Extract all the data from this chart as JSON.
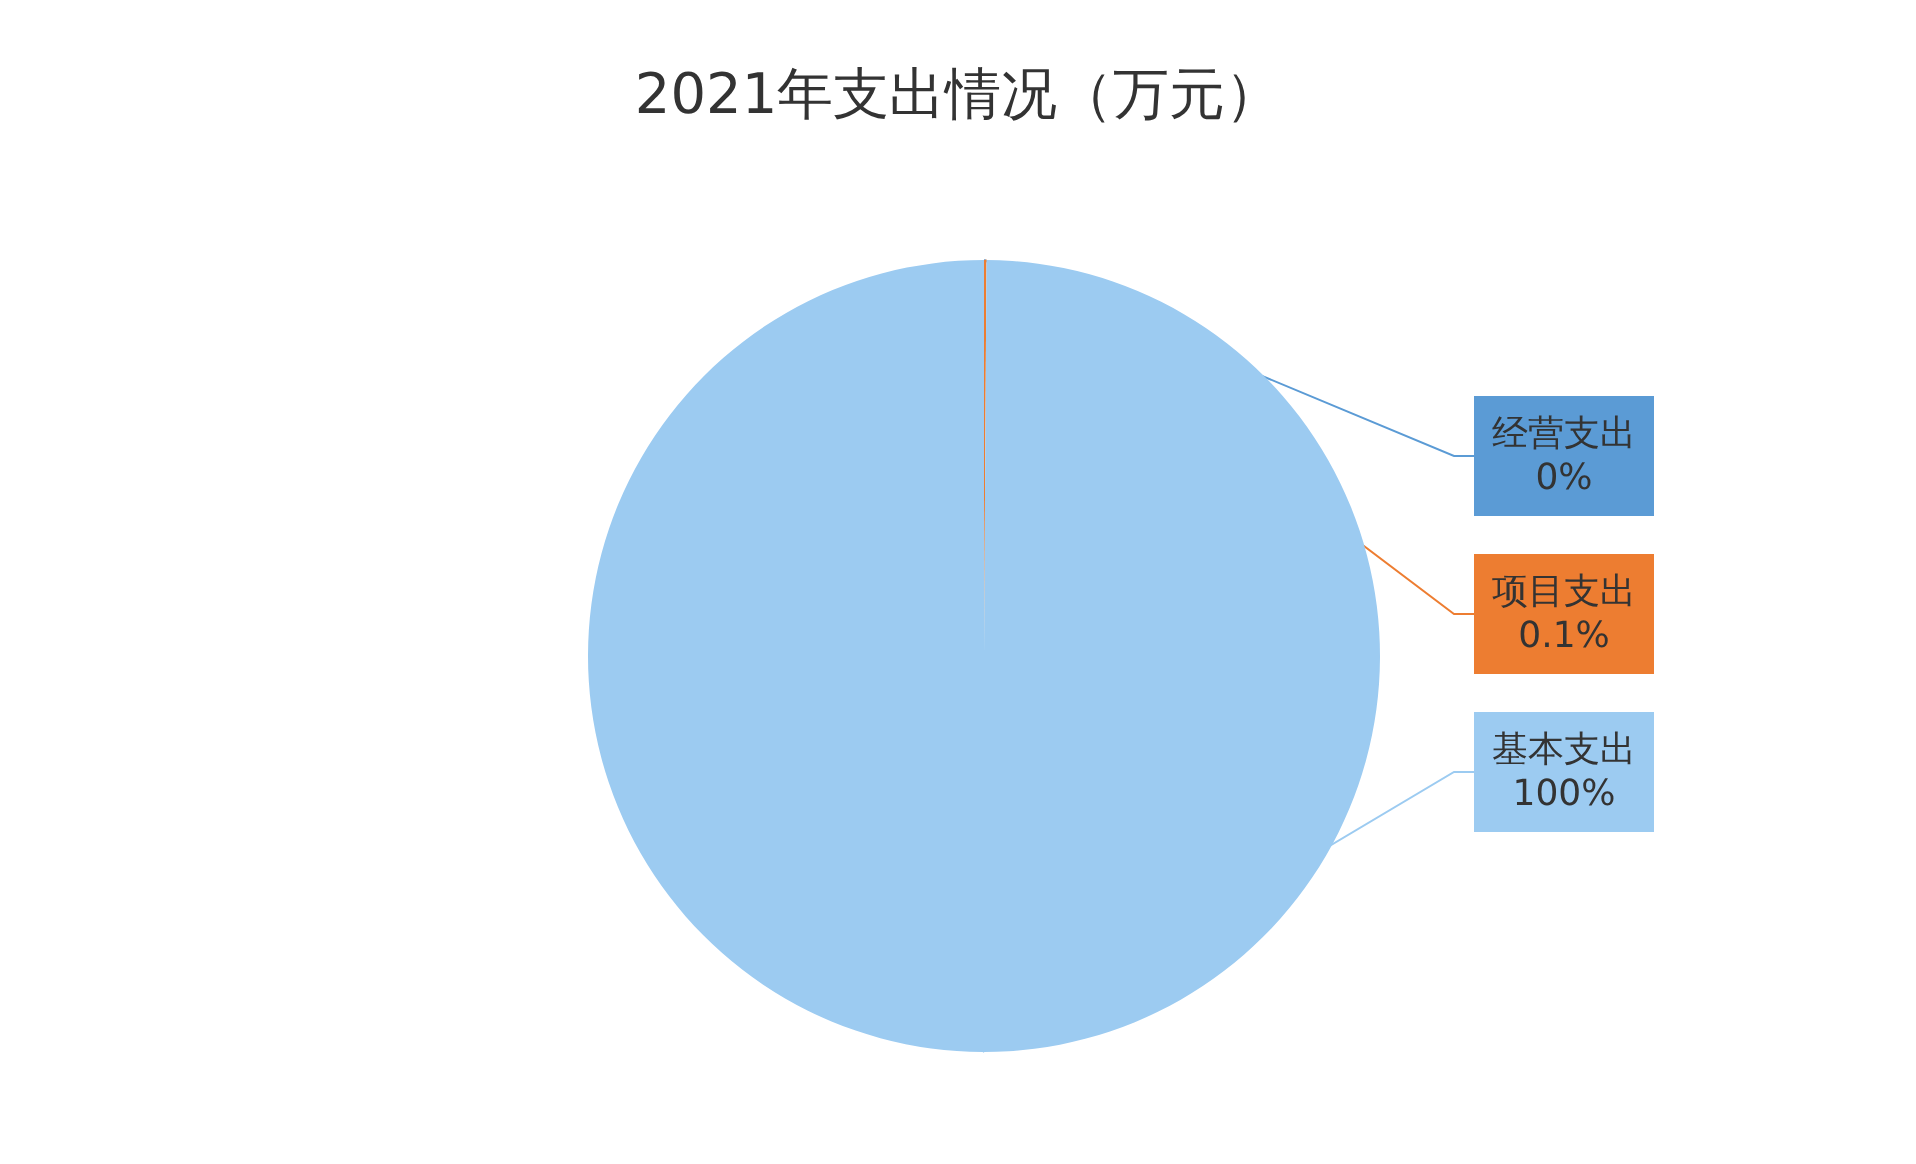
{
  "chart_data": {
    "type": "pie",
    "title": "2021年支出情况（万元）",
    "categories": [
      "经营支出",
      "项目支出",
      "基本支出"
    ],
    "values": [
      0,
      0.1,
      100
    ],
    "value_labels": [
      "0%",
      "0.1%",
      "100%"
    ],
    "colors": [
      "#5b9bd5",
      "#ed7d31",
      "#9ccbf1"
    ],
    "legend": false
  }
}
